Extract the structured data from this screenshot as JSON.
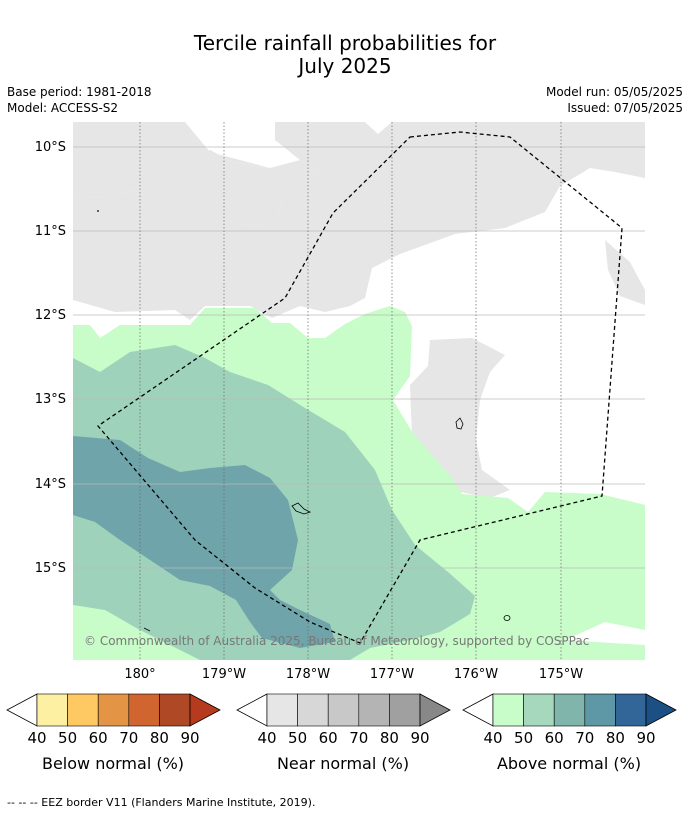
{
  "title": {
    "line1": "Tercile rainfall probabilities for",
    "line2": "July 2025"
  },
  "meta": {
    "base_period": "Base period: 1981-2018",
    "model": "Model: ACCESS-S2",
    "model_run": "Model run: 05/05/2025",
    "issued": "Issued: 07/05/2025"
  },
  "map": {
    "lat_labels": [
      "10°S",
      "11°S",
      "12°S",
      "13°S",
      "14°S",
      "15°S"
    ],
    "lon_labels": [
      "180°",
      "179°W",
      "178°W",
      "177°W",
      "176°W",
      "175°W"
    ],
    "copyright": "© Commonwealth of Australia 2025, Bureau of Meteorology, supported by COSPPac",
    "colors": {
      "near_normal": "#e6e6e6",
      "above_40": "#c8fcc8",
      "above_50": "#9ed2bb",
      "above_60": "#6fa5aa"
    }
  },
  "colorbars": [
    {
      "label": "Below normal (%)",
      "ticks": [
        "40",
        "50",
        "60",
        "70",
        "80",
        "90"
      ],
      "colors": [
        "#fef0a2",
        "#fec862",
        "#e39444",
        "#d0652f",
        "#ae4825",
        "#b53a1e"
      ]
    },
    {
      "label": "Near normal (%)",
      "ticks": [
        "40",
        "50",
        "60",
        "70",
        "80",
        "90"
      ],
      "colors": [
        "#e6e6e6",
        "#d7d7d7",
        "#c8c8c8",
        "#b4b4b4",
        "#a0a0a0",
        "#888888"
      ]
    },
    {
      "label": "Above normal (%)",
      "ticks": [
        "40",
        "50",
        "60",
        "70",
        "80",
        "90"
      ],
      "colors": [
        "#c8fcc8",
        "#a6d8bd",
        "#80b5ac",
        "#5e97a6",
        "#326699",
        "#1c4f84"
      ]
    }
  ],
  "footnote": "-- -- -- EEZ border V11 (Flanders Marine Institute, 2019)."
}
